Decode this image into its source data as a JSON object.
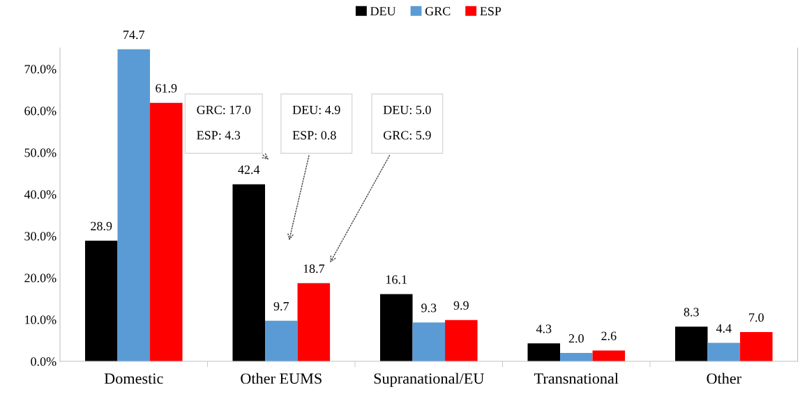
{
  "chart_data": {
    "type": "bar",
    "categories": [
      "Domestic",
      "Other EUMS",
      "Supranational/EU",
      "Transnational",
      "Other"
    ],
    "series": [
      {
        "name": "DEU",
        "color": "#000000",
        "values": [
          28.9,
          42.4,
          16.1,
          4.3,
          8.3
        ],
        "value_labels": [
          "28.9",
          "42.4",
          "16.1",
          "4.3",
          "8.3"
        ]
      },
      {
        "name": "GRC",
        "color": "#5b9bd5",
        "values": [
          74.7,
          9.7,
          9.3,
          2.0,
          4.4
        ],
        "value_labels": [
          "74.7",
          "9.7",
          "9.3",
          "2.0",
          "4.4"
        ]
      },
      {
        "name": "ESP",
        "color": "#ff0000",
        "values": [
          61.9,
          18.7,
          9.9,
          2.6,
          7.0
        ],
        "value_labels": [
          "61.9",
          "18.7",
          "9.9",
          "2.6",
          "7.0"
        ]
      }
    ],
    "ylim": [
      0,
      75
    ],
    "yticks": [
      {
        "value": 0,
        "label": "0.0%"
      },
      {
        "value": 10,
        "label": "10.0%"
      },
      {
        "value": 20,
        "label": "20.0%"
      },
      {
        "value": 30,
        "label": "30.0%"
      },
      {
        "value": 40,
        "label": "40.0%"
      },
      {
        "value": 50,
        "label": "50.0%"
      },
      {
        "value": 60,
        "label": "60.0%"
      },
      {
        "value": 70,
        "label": "70.0%"
      }
    ],
    "grid": false,
    "legend": "top",
    "data_labels": true,
    "annotations": [
      "GRC: 17.0\nESP: 4.3",
      "DEU: 4.9\nESP: 0.8",
      "DEU: 5.0\nGRC: 5.9"
    ]
  }
}
